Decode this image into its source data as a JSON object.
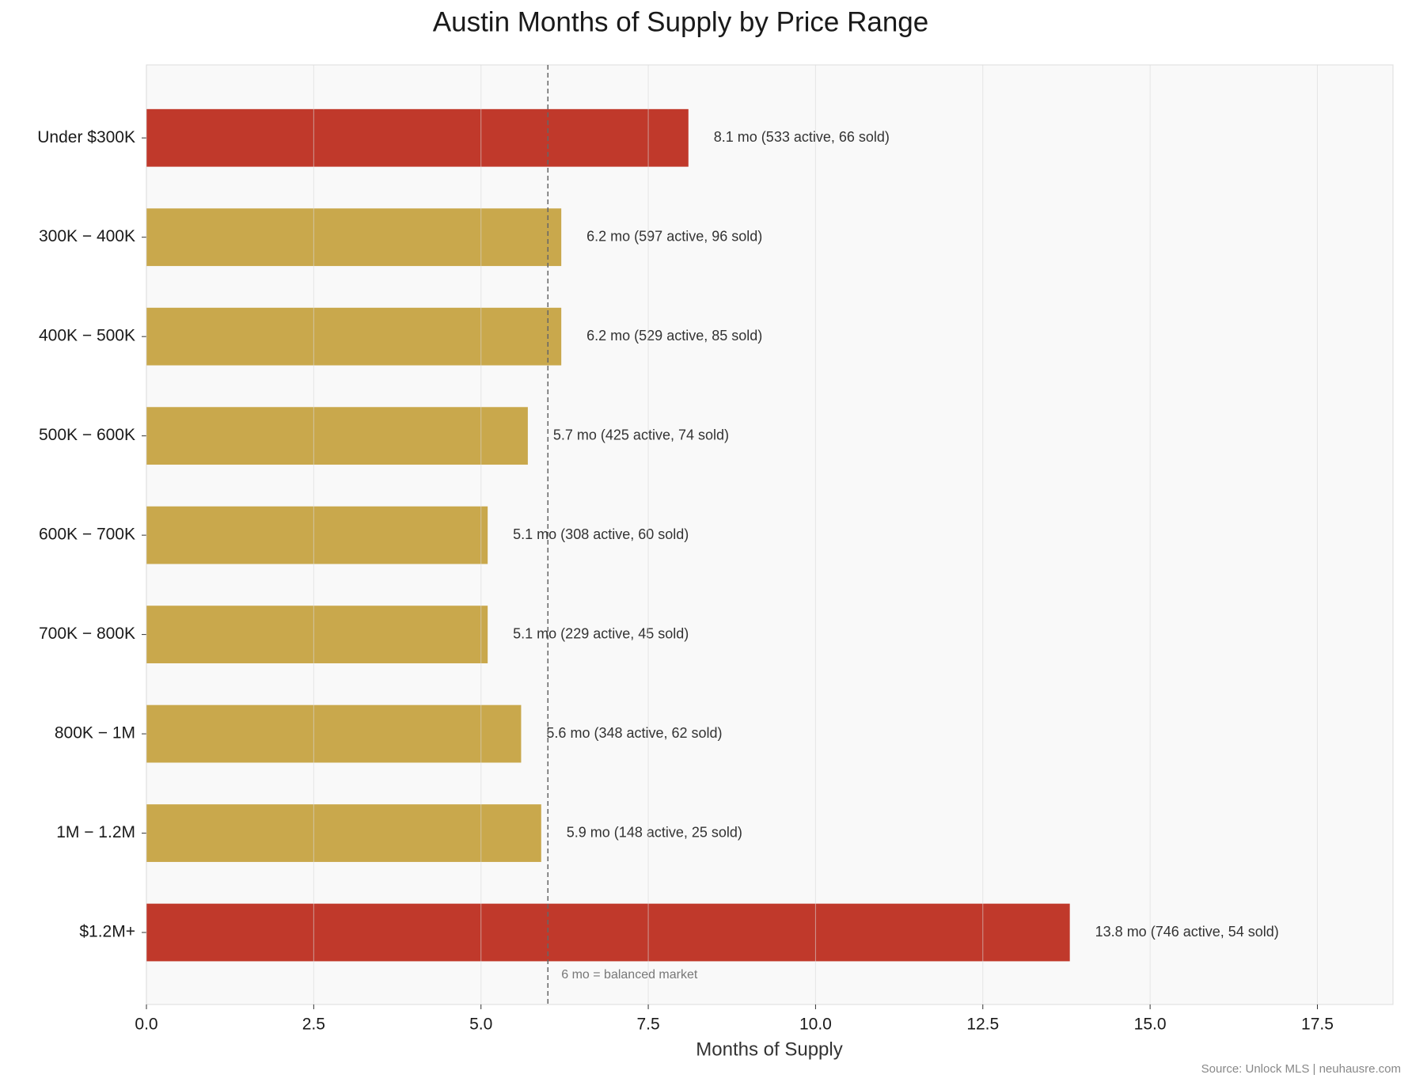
{
  "chart_data": {
    "type": "barh",
    "title": "Austin Months of Supply by Price Range",
    "xlabel": "Months of Supply",
    "source": "Source: Unlock MLS | neuhausre.com",
    "categories": [
      "Under $300K",
      "300K − 400K",
      "400K − 500K",
      "500K − 600K",
      "600K − 700K",
      "700K − 800K",
      "800K − 1M",
      "1M − 1.2M",
      "$1.2M+"
    ],
    "values": [
      8.1,
      6.2,
      6.2,
      5.7,
      5.1,
      5.1,
      5.6,
      5.9,
      13.8
    ],
    "value_labels": [
      "8.1 mo  (533 active, 66 sold)",
      "6.2 mo  (597 active, 96 sold)",
      "6.2 mo  (529 active, 85 sold)",
      "5.7 mo  (425 active, 74 sold)",
      "5.1 mo  (308 active, 60 sold)",
      "5.1 mo  (229 active, 45 sold)",
      "5.6 mo  (348 active, 62 sold)",
      "5.9 mo  (148 active, 25 sold)",
      "13.8 mo  (746 active, 54 sold)"
    ],
    "colors": [
      "#c0392b",
      "#c9a84c",
      "#c9a84c",
      "#c9a84c",
      "#c9a84c",
      "#c9a84c",
      "#c9a84c",
      "#c9a84c",
      "#c0392b"
    ],
    "xlim": [
      0,
      18.63
    ],
    "xticks": [
      0,
      2.5,
      5,
      7.5,
      10,
      12.5,
      15,
      17.5
    ],
    "xtick_labels": [
      "0.0",
      "2.5",
      "5.0",
      "7.5",
      "10.0",
      "12.5",
      "15.0",
      "17.5"
    ],
    "grid": true,
    "reference_line": {
      "value": 6,
      "label": "6 mo = balanced market"
    }
  }
}
